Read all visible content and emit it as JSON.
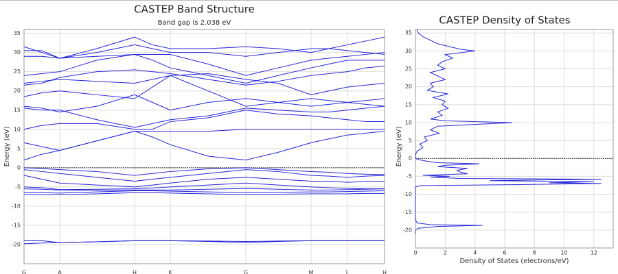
{
  "chart_data": [
    {
      "type": "line",
      "title": "CASTEP Band Structure",
      "subtitle": "Band gap is 2.038 eV",
      "ylabel": "Energy (eV)",
      "x": [
        0,
        26,
        52,
        106,
        161,
        187,
        213,
        268,
        323,
        370,
        418,
        444,
        471,
        498,
        525
      ],
      "xlim": [
        0,
        525
      ],
      "xticks": [
        {
          "value": 0,
          "label": "G"
        },
        {
          "value": 52,
          "label": "A"
        },
        {
          "value": 161,
          "label": "H"
        },
        {
          "value": 213,
          "label": "K"
        },
        {
          "value": 323,
          "label": "G"
        },
        {
          "value": 418,
          "label": "M"
        },
        {
          "value": 471,
          "label": "L"
        },
        {
          "value": 525,
          "label": "H"
        }
      ],
      "ylim": [
        -25,
        36
      ],
      "yticks": [
        -20,
        -15,
        -10,
        -5,
        0,
        5,
        10,
        15,
        20,
        25,
        30,
        35
      ],
      "grid": true,
      "color": "#2424d8",
      "series": [
        {
          "values": [
            -19.8,
            -19.6,
            -19.5,
            -19.3,
            -19.0,
            -19.0,
            -19.0,
            -19.2,
            -19.5,
            -19.2,
            -19.0,
            -19.0,
            -19.0,
            -19.0,
            -19.0
          ]
        },
        {
          "values": [
            -19.0,
            -19.0,
            -19.5,
            -19.3,
            -19.0,
            -19.0,
            -19.0,
            -19.1,
            -19.2,
            -19.1,
            -19.0,
            -19.0,
            -19.0,
            -19.0,
            -19.0
          ]
        },
        {
          "values": [
            -7,
            -7,
            -7,
            -6.8,
            -6.5,
            -6.5,
            -6.6,
            -6.8,
            -7,
            -6.9,
            -6.8,
            -6.8,
            -6.8,
            -6.7,
            -6.7
          ]
        },
        {
          "values": [
            -6.5,
            -6.5,
            -6.6,
            -6.3,
            -6,
            -6,
            -6.1,
            -6.3,
            -6.5,
            -6.4,
            -6.3,
            -6.3,
            -6.2,
            -6.1,
            -6.0
          ]
        },
        {
          "values": [
            -5.5,
            -5.6,
            -5.8,
            -5.9,
            -5.8,
            -5.8,
            -5.8,
            -5.6,
            -5.4,
            -5.6,
            -5.8,
            -5.8,
            -5.7,
            -5.6,
            -5.5
          ]
        },
        {
          "values": [
            -5,
            -5.2,
            -5.7,
            -5.6,
            -5.5,
            -5.3,
            -5,
            -4.5,
            -4,
            -4.5,
            -5,
            -5.2,
            -5.4,
            -5.5,
            -5.5
          ]
        },
        {
          "values": [
            -2,
            -3,
            -4,
            -4.5,
            -5,
            -4.5,
            -4,
            -3,
            -2.5,
            -3,
            -3.5,
            -3.5,
            -3.8,
            -3.6,
            -3.5
          ]
        },
        {
          "values": [
            -0.5,
            -1,
            -1.5,
            -2.5,
            -3.5,
            -3,
            -2.5,
            -1.5,
            -0.5,
            -1,
            -2,
            -2.2,
            -2.5,
            -2.2,
            -2
          ]
        },
        {
          "values": [
            0,
            -0.2,
            -0.5,
            -1,
            -2,
            -1.5,
            -1,
            -0.3,
            0,
            -0.5,
            -1,
            -1.2,
            -1.5,
            -1.7,
            -1.8
          ]
        },
        {
          "values": [
            2,
            3.5,
            4.5,
            7,
            9.5,
            8,
            6,
            3,
            2,
            4,
            6.5,
            7.5,
            8.5,
            9,
            9.5
          ]
        },
        {
          "values": [
            6.5,
            5.5,
            4.5,
            7,
            9.5,
            9.5,
            9.5,
            9.5,
            10,
            10,
            10,
            10,
            10,
            10,
            10
          ]
        },
        {
          "values": [
            10,
            11,
            11.5,
            11.5,
            10,
            10,
            12,
            13,
            15,
            14,
            13.5,
            13,
            12.5,
            12,
            12
          ]
        },
        {
          "values": [
            15.5,
            15,
            15,
            12.5,
            10.5,
            11.5,
            12.5,
            13.5,
            15.5,
            15,
            14.5,
            14.5,
            15,
            15.5,
            16
          ]
        },
        {
          "values": [
            16,
            15.5,
            14.5,
            16,
            19,
            17,
            15,
            17,
            18,
            17,
            16,
            16.5,
            17,
            17.5,
            18
          ]
        },
        {
          "values": [
            18.5,
            19.5,
            20,
            19,
            18,
            21,
            24,
            20,
            16,
            17,
            18,
            17.5,
            17,
            16.5,
            16
          ]
        },
        {
          "values": [
            22,
            22.5,
            23,
            22.5,
            22,
            23,
            24,
            24.5,
            23,
            22,
            19,
            20,
            21,
            21.5,
            22
          ]
        },
        {
          "values": [
            21.5,
            22,
            23.5,
            25,
            25.5,
            25,
            24.5,
            23,
            21.5,
            22.5,
            24,
            24.5,
            25,
            26,
            26.5
          ]
        },
        {
          "values": [
            24,
            24.5,
            25,
            28,
            29.5,
            28,
            26,
            24,
            22,
            24,
            26,
            27,
            28,
            28,
            28
          ]
        },
        {
          "values": [
            29,
            29,
            28.5,
            29,
            29.5,
            29.5,
            29.5,
            27,
            24,
            26,
            28,
            28.5,
            29,
            29.5,
            30
          ]
        },
        {
          "values": [
            31.5,
            30,
            28.5,
            30,
            32,
            31,
            30,
            30,
            29,
            30,
            31,
            31,
            30.5,
            30,
            29.5
          ]
        },
        {
          "values": [
            30.5,
            30.5,
            28.5,
            31,
            34,
            32,
            31,
            31,
            31.5,
            31,
            30,
            31,
            32,
            33,
            34
          ]
        }
      ]
    },
    {
      "type": "line",
      "orientation": "horizontal",
      "title": "CASTEP Density of States",
      "xlabel": "Density of States (electrons/eV)",
      "ylabel": "Energy (eV)",
      "y": [
        -21,
        -20,
        -19.5,
        -19,
        -18.7,
        -18.5,
        -18,
        -17,
        -15,
        -10,
        -8,
        -7.6,
        -7.3,
        -7,
        -6.8,
        -6.5,
        -6.2,
        -5.8,
        -5.6,
        -5.2,
        -5,
        -4.7,
        -4.3,
        -3.8,
        -3.3,
        -2.8,
        -2.3,
        -1.9,
        -1.5,
        -1.2,
        -0.8,
        -0.3,
        0,
        1,
        2,
        3,
        4,
        5,
        6,
        7,
        8,
        9,
        10,
        10.5,
        11,
        12,
        13,
        14,
        15,
        16,
        17,
        18,
        19,
        20,
        21,
        22,
        23,
        24,
        25,
        26,
        27,
        28,
        29,
        30,
        30.5,
        31,
        32,
        33,
        34,
        35,
        36
      ],
      "values": [
        0,
        0,
        0.2,
        1.5,
        4.5,
        1.0,
        0.1,
        0,
        0,
        0,
        0,
        0.3,
        7,
        12.5,
        9,
        12,
        5,
        12.5,
        3,
        1.0,
        2.3,
        0.5,
        3.5,
        3.0,
        2.8,
        3.5,
        1.5,
        2.0,
        4.3,
        1.5,
        0.8,
        0.2,
        0,
        0,
        0.1,
        0.5,
        0.3,
        0.8,
        0.6,
        1.6,
        1.0,
        1.5,
        6.5,
        2,
        1.0,
        1.8,
        1.5,
        2.2,
        1.8,
        2.0,
        1.2,
        2.2,
        0.8,
        1.2,
        1.0,
        2.0,
        1.5,
        1.0,
        2.0,
        1.5,
        1.8,
        2.5,
        2.0,
        4.0,
        3,
        2.5,
        1.5,
        1.0,
        0.5,
        0.2,
        0.1
      ],
      "xlim": [
        0,
        13.3
      ],
      "xticks": [
        0,
        2,
        4,
        6,
        8,
        10,
        12
      ],
      "ylim": [
        -25,
        36
      ],
      "yticks": [
        -20,
        -15,
        -10,
        -5,
        0,
        5,
        10,
        15,
        20,
        25,
        30,
        35
      ],
      "grid": true,
      "color": "#2424d8"
    }
  ]
}
